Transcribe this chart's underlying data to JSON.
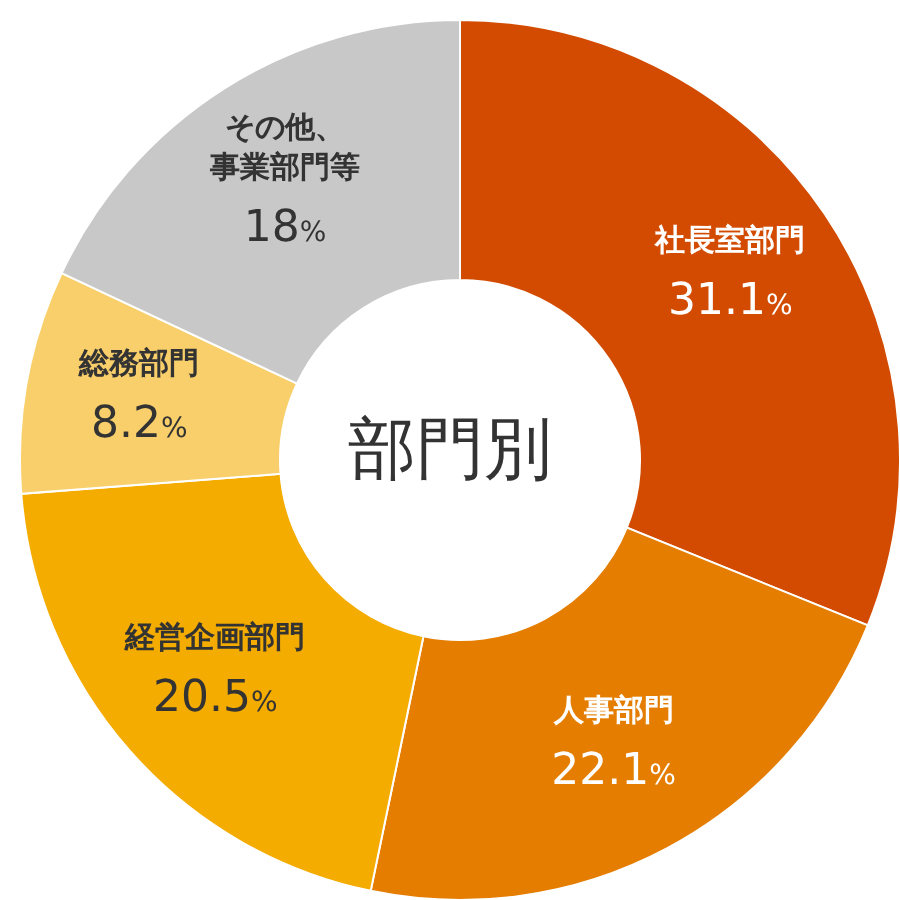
{
  "chart_data": {
    "type": "donut",
    "title": "部門別",
    "categories": [
      "社長室部門",
      "人事部門",
      "経営企画部門",
      "総務部門",
      "その他、事業部門等"
    ],
    "values": [
      31.1,
      22.1,
      20.5,
      8.2,
      18
    ],
    "value_labels": [
      "31.1%",
      "22.1%",
      "20.5%",
      "8.2%",
      "18%"
    ],
    "colors": [
      "#d24b00",
      "#e47d00",
      "#f4ac00",
      "#f8cf6a",
      "#c8c8c8"
    ],
    "legend": false
  }
}
